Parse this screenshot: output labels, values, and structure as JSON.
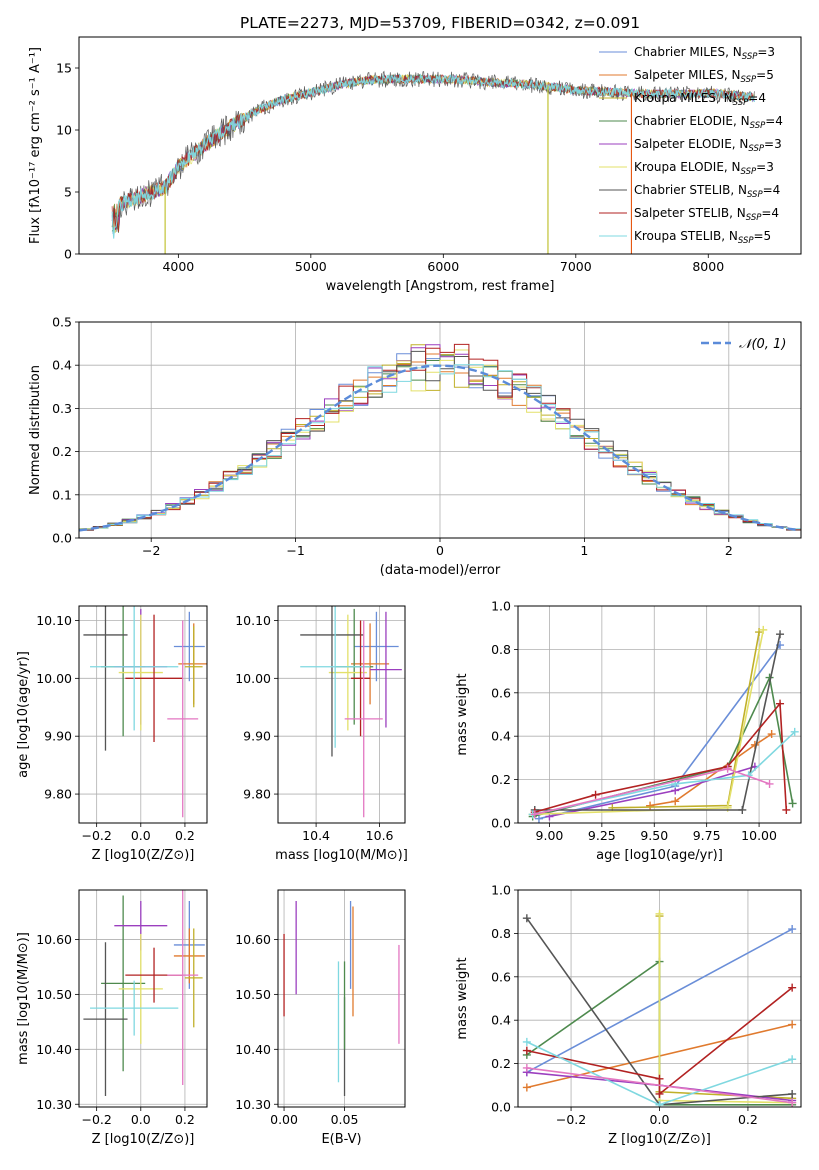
{
  "figure": {
    "title": "PLATE=2273, MJD=53709, FIBERID=0342, z=0.091"
  },
  "chart_data": [
    {
      "id": "spectrum",
      "type": "line",
      "xlabel": "wavelength [Angstrom, rest frame]",
      "ylabel": "Flux [fλ10⁻¹⁷ erg cm⁻² s⁻¹ A⁻¹]",
      "xlim": [
        3250,
        8700
      ],
      "ylim": [
        0,
        17.5
      ],
      "xticks": [
        4000,
        5000,
        6000,
        7000,
        8000
      ],
      "yticks": [
        0,
        5,
        10,
        15
      ],
      "grid": false,
      "legend_position": "top-right",
      "continuum": {
        "x": [
          3500,
          3700,
          3900,
          4000,
          4200,
          4400,
          4600,
          4800,
          5000,
          5200,
          5400,
          5600,
          5800,
          6000,
          6200,
          6400,
          6600,
          6800,
          7000,
          7200,
          7400,
          7600,
          7800,
          8000,
          8200,
          8350
        ],
        "y": [
          3.8,
          4.6,
          5.4,
          7.0,
          8.8,
          10.3,
          11.6,
          12.5,
          13.0,
          13.6,
          14.0,
          14.1,
          14.1,
          14.1,
          14.0,
          13.8,
          13.7,
          13.5,
          13.2,
          13.1,
          13.0,
          12.9,
          12.9,
          13.0,
          12.8,
          12.6
        ]
      },
      "spikes": [
        {
          "x": 3900,
          "y": 0.0,
          "color": "#bcbd22"
        },
        {
          "x": 6790,
          "y": 0.0,
          "color": "#bcbd22"
        },
        {
          "x": 7420,
          "y": 0.0,
          "color": "#e6550d"
        }
      ],
      "series": [
        {
          "name": "Chabrier MILES, N",
          "sub": "SSP",
          "suffix": "=3",
          "color": "#6a8ed8"
        },
        {
          "name": "Salpeter MILES, N",
          "sub": "SSP",
          "suffix": "=5",
          "color": "#e07a2e"
        },
        {
          "name": "Kroupa MILES, N",
          "sub": "SSP",
          "suffix": "=4",
          "color": "#c0b02a"
        },
        {
          "name": "Chabrier ELODIE, N",
          "sub": "SSP",
          "suffix": "=4",
          "color": "#4e8a4e"
        },
        {
          "name": "Salpeter ELODIE, N",
          "sub": "SSP",
          "suffix": "=3",
          "color": "#9b3fbf"
        },
        {
          "name": "Kroupa ELODIE, N",
          "sub": "SSP",
          "suffix": "=3",
          "color": "#e3e06a"
        },
        {
          "name": "Chabrier STELIB, N",
          "sub": "SSP",
          "suffix": "=4",
          "color": "#555555"
        },
        {
          "name": "Salpeter STELIB, N",
          "sub": "SSP",
          "suffix": "=4",
          "color": "#b22222"
        },
        {
          "name": "Kroupa STELIB, N",
          "sub": "SSP",
          "suffix": "=5",
          "color": "#7fd8e0"
        }
      ]
    },
    {
      "id": "residuals",
      "type": "step",
      "xlabel": "(data-model)/error",
      "ylabel": "Normed distribution",
      "xlim": [
        -2.5,
        2.5
      ],
      "ylim": [
        0,
        0.5
      ],
      "xticks": [
        -2,
        -1,
        0,
        1,
        2
      ],
      "yticks": [
        0.0,
        0.1,
        0.2,
        0.3,
        0.4,
        0.5
      ],
      "grid": true,
      "legend_position": "top-right",
      "gaussian_label": "𝒩(0, 1)",
      "gaussian_color": "#5b8bd9",
      "bin_width": 0.1,
      "series_colors": [
        "#6a8ed8",
        "#e07a2e",
        "#c0b02a",
        "#4e8a4e",
        "#9b3fbf",
        "#e3e06a",
        "#555555",
        "#b22222",
        "#7fd8e0"
      ]
    },
    {
      "id": "age-vs-Z",
      "type": "errorbar",
      "xlabel": "Z [log10(Z/Z⊙)]",
      "ylabel": "age  [log10(age/yr)]",
      "xlim": [
        -0.28,
        0.3
      ],
      "ylim": [
        9.75,
        10.125
      ],
      "xticks": [
        -0.2,
        0.0,
        0.2
      ],
      "yticks": [
        9.8,
        9.9,
        10.0,
        10.1
      ],
      "grid": true,
      "points": [
        {
          "x": 0.22,
          "y": 10.055,
          "xerr": 0.07,
          "yerr": 0.06,
          "color": "#6a8ed8"
        },
        {
          "x": 0.24,
          "y": 10.025,
          "xerr": 0.07,
          "yerr": 0.07,
          "color": "#e07a2e"
        },
        {
          "x": 0.24,
          "y": 10.02,
          "xerr": 0.04,
          "yerr": 0.07,
          "color": "#c0b02a"
        },
        {
          "x": -0.08,
          "y": 10.02,
          "xerr": 0.1,
          "yerr": 0.12,
          "color": "#4e8a4e"
        },
        {
          "x": 0.0,
          "y": 10.02,
          "xerr": 0.12,
          "yerr": 0.1,
          "color": "#9b3fbf"
        },
        {
          "x": 0.0,
          "y": 10.01,
          "xerr": 0.1,
          "yerr": 0.1,
          "color": "#e3e06a"
        },
        {
          "x": -0.16,
          "y": 10.075,
          "xerr": 0.1,
          "yerr": 0.2,
          "color": "#555555"
        },
        {
          "x": 0.06,
          "y": 10.0,
          "xerr": 0.13,
          "yerr": 0.11,
          "color": "#b22222"
        },
        {
          "x": -0.03,
          "y": 10.02,
          "xerr": 0.2,
          "yerr": 0.11,
          "color": "#7fd8e0"
        },
        {
          "x": 0.19,
          "y": 9.93,
          "xerr": 0.07,
          "yerr": 0.17,
          "color": "#e377c2"
        }
      ]
    },
    {
      "id": "age-vs-mass",
      "type": "errorbar",
      "xlabel": "mass [log10(M/M⊙)]",
      "ylabel": "",
      "xlim": [
        10.28,
        10.68
      ],
      "ylim": [
        9.75,
        10.125
      ],
      "xticks": [
        10.4,
        10.6
      ],
      "yticks": [
        9.8,
        9.9,
        10.0,
        10.1
      ],
      "grid": true,
      "points": [
        {
          "x": 10.59,
          "y": 10.055,
          "xerr": 0.07,
          "yerr": 0.06,
          "color": "#6a8ed8"
        },
        {
          "x": 10.57,
          "y": 10.025,
          "xerr": 0.06,
          "yerr": 0.07,
          "color": "#e07a2e"
        },
        {
          "x": 10.52,
          "y": 10.02,
          "xerr": 0.06,
          "yerr": 0.1,
          "color": "#4e8a4e"
        },
        {
          "x": 10.62,
          "y": 10.015,
          "xerr": 0.05,
          "yerr": 0.1,
          "color": "#9b3fbf"
        },
        {
          "x": 10.5,
          "y": 10.01,
          "xerr": 0.06,
          "yerr": 0.1,
          "color": "#e3e06a"
        },
        {
          "x": 10.45,
          "y": 10.075,
          "xerr": 0.1,
          "yerr": 0.21,
          "color": "#555555"
        },
        {
          "x": 10.54,
          "y": 10.0,
          "xerr": 0.03,
          "yerr": 0.1,
          "color": "#b22222"
        },
        {
          "x": 10.46,
          "y": 10.02,
          "xerr": 0.11,
          "yerr": 0.14,
          "color": "#7fd8e0"
        },
        {
          "x": 10.55,
          "y": 9.93,
          "xerr": 0.06,
          "yerr": 0.17,
          "color": "#e377c2"
        }
      ]
    },
    {
      "id": "weight-vs-age",
      "type": "line",
      "xlabel": "age  [log10(age/yr)]",
      "ylabel": "mass weight",
      "xlim": [
        8.85,
        10.2
      ],
      "ylim": [
        0,
        1.0
      ],
      "xticks": [
        9.0,
        9.25,
        9.5,
        9.75,
        10.0
      ],
      "yticks": [
        0.0,
        0.2,
        0.4,
        0.6,
        0.8,
        1.0
      ],
      "grid": true,
      "series": [
        {
          "color": "#6a8ed8",
          "x": [
            8.95,
            9.6,
            10.1
          ],
          "y": [
            0.02,
            0.17,
            0.82
          ]
        },
        {
          "color": "#e07a2e",
          "x": [
            9.48,
            9.6,
            9.98,
            10.06
          ],
          "y": [
            0.08,
            0.1,
            0.36,
            0.41
          ]
        },
        {
          "color": "#c0b02a",
          "x": [
            9.3,
            9.85,
            10.0
          ],
          "y": [
            0.07,
            0.08,
            0.88
          ]
        },
        {
          "color": "#4e8a4e",
          "x": [
            8.92,
            9.85,
            10.05,
            10.16
          ],
          "y": [
            0.03,
            0.26,
            0.67,
            0.09
          ]
        },
        {
          "color": "#9b3fbf",
          "x": [
            9.0,
            9.6,
            9.98
          ],
          "y": [
            0.03,
            0.15,
            0.26
          ]
        },
        {
          "color": "#e3e06a",
          "x": [
            8.92,
            9.85,
            10.02
          ],
          "y": [
            0.04,
            0.07,
            0.89
          ]
        },
        {
          "color": "#555555",
          "x": [
            8.93,
            9.92,
            10.1
          ],
          "y": [
            0.06,
            0.06,
            0.87
          ]
        },
        {
          "color": "#b22222",
          "x": [
            8.93,
            9.22,
            9.85,
            10.1,
            10.13
          ],
          "y": [
            0.05,
            0.13,
            0.26,
            0.55,
            0.06
          ]
        },
        {
          "color": "#7fd8e0",
          "x": [
            8.92,
            9.6,
            9.95,
            10.17
          ],
          "y": [
            0.04,
            0.18,
            0.22,
            0.42
          ]
        },
        {
          "color": "#e377c2",
          "x": [
            8.93,
            9.85,
            10.05
          ],
          "y": [
            0.04,
            0.25,
            0.18
          ]
        }
      ]
    },
    {
      "id": "mass-vs-Z",
      "type": "errorbar",
      "xlabel": "Z [log10(Z/Z⊙)]",
      "ylabel": "mass [log10(M/M⊙)]",
      "xlim": [
        -0.28,
        0.3
      ],
      "ylim": [
        10.295,
        10.69
      ],
      "xticks": [
        -0.2,
        0.0,
        0.2
      ],
      "yticks": [
        10.3,
        10.4,
        10.5,
        10.6
      ],
      "grid": true,
      "points": [
        {
          "x": 0.22,
          "y": 10.59,
          "xerr": 0.07,
          "yerr": 0.08,
          "color": "#6a8ed8"
        },
        {
          "x": 0.22,
          "y": 10.57,
          "xerr": 0.07,
          "yerr": 0.05,
          "color": "#e07a2e"
        },
        {
          "x": 0.24,
          "y": 10.53,
          "xerr": 0.04,
          "yerr": 0.09,
          "color": "#c0b02a"
        },
        {
          "x": -0.08,
          "y": 10.52,
          "xerr": 0.1,
          "yerr": 0.16,
          "color": "#4e8a4e"
        },
        {
          "x": 0.0,
          "y": 10.625,
          "xerr": 0.12,
          "yerr": 0.045,
          "color": "#9b3fbf"
        },
        {
          "x": 0.0,
          "y": 10.51,
          "xerr": 0.1,
          "yerr": 0.1,
          "color": "#e3e06a"
        },
        {
          "x": -0.16,
          "y": 10.455,
          "xerr": 0.1,
          "yerr": 0.14,
          "color": "#555555"
        },
        {
          "x": 0.06,
          "y": 10.535,
          "xerr": 0.13,
          "yerr": 0.05,
          "color": "#b22222"
        },
        {
          "x": -0.03,
          "y": 10.475,
          "xerr": 0.2,
          "yerr": 0.05,
          "color": "#7fd8e0"
        },
        {
          "x": 0.19,
          "y": 10.535,
          "xerr": 0.07,
          "yerr": 0.2,
          "color": "#e377c2"
        }
      ]
    },
    {
      "id": "mass-vs-EBV",
      "type": "errorbar",
      "xlabel": "E(B-V)",
      "ylabel": "",
      "xlim": [
        -0.005,
        0.1
      ],
      "ylim": [
        10.295,
        10.69
      ],
      "xticks": [
        0.0,
        0.05
      ],
      "yticks": [
        10.3,
        10.4,
        10.5,
        10.6
      ],
      "grid": true,
      "points": [
        {
          "x": 0.01,
          "y": 10.585,
          "xerr": 0.0,
          "yerr": 0.085,
          "color": "#9b3fbf"
        },
        {
          "x": 0.0,
          "y": 10.535,
          "xerr": 0.0,
          "yerr": 0.075,
          "color": "#b22222"
        },
        {
          "x": 0.045,
          "y": 10.45,
          "xerr": 0.0,
          "yerr": 0.11,
          "color": "#7fd8e0"
        },
        {
          "x": 0.05,
          "y": 10.405,
          "xerr": 0.0,
          "yerr": 0.09,
          "color": "#555555"
        },
        {
          "x": 0.055,
          "y": 10.59,
          "xerr": 0.0,
          "yerr": 0.08,
          "color": "#6a8ed8"
        },
        {
          "x": 0.057,
          "y": 10.56,
          "xerr": 0.0,
          "yerr": 0.1,
          "color": "#e07a2e"
        },
        {
          "x": 0.05,
          "y": 10.48,
          "xerr": 0.0,
          "yerr": 0.08,
          "color": "#4e8a4e"
        },
        {
          "x": 0.095,
          "y": 10.5,
          "xerr": 0.0,
          "yerr": 0.09,
          "color": "#e377c2"
        }
      ]
    },
    {
      "id": "weight-vs-Z",
      "type": "line",
      "xlabel": "Z [log10(Z/Z⊙)]",
      "ylabel": "mass weight",
      "xlim": [
        -0.32,
        0.32
      ],
      "ylim": [
        0,
        1.0
      ],
      "xticks": [
        -0.2,
        0.0,
        0.2
      ],
      "yticks": [
        0.0,
        0.2,
        0.4,
        0.6,
        0.8,
        1.0
      ],
      "grid": true,
      "series": [
        {
          "color": "#6a8ed8",
          "x": [
            -0.3,
            0.3
          ],
          "y": [
            0.16,
            0.82
          ]
        },
        {
          "color": "#e07a2e",
          "x": [
            -0.3,
            0.3
          ],
          "y": [
            0.09,
            0.38
          ]
        },
        {
          "color": "#c0b02a",
          "x": [
            0.0,
            0.0,
            0.3
          ],
          "y": [
            0.88,
            0.07,
            0.04
          ]
        },
        {
          "color": "#4e8a4e",
          "x": [
            -0.3,
            0.0,
            0.0,
            0.3
          ],
          "y": [
            0.24,
            0.67,
            0.01,
            0.01
          ]
        },
        {
          "color": "#9b3fbf",
          "x": [
            -0.3,
            0.0,
            0.3
          ],
          "y": [
            0.16,
            0.1,
            0.03
          ]
        },
        {
          "color": "#e3e06a",
          "x": [
            0.0,
            0.0,
            0.3
          ],
          "y": [
            0.89,
            0.03,
            0.02
          ]
        },
        {
          "color": "#555555",
          "x": [
            -0.3,
            0.0,
            0.3
          ],
          "y": [
            0.87,
            0.01,
            0.06
          ]
        },
        {
          "color": "#b22222",
          "x": [
            -0.3,
            0.0,
            0.0,
            0.3
          ],
          "y": [
            0.26,
            0.13,
            0.06,
            0.55
          ]
        },
        {
          "color": "#7fd8e0",
          "x": [
            -0.3,
            0.0,
            0.3
          ],
          "y": [
            0.3,
            0.01,
            0.22
          ]
        },
        {
          "color": "#e377c2",
          "x": [
            -0.3,
            0.3
          ],
          "y": [
            0.18,
            0.02
          ]
        }
      ]
    }
  ]
}
